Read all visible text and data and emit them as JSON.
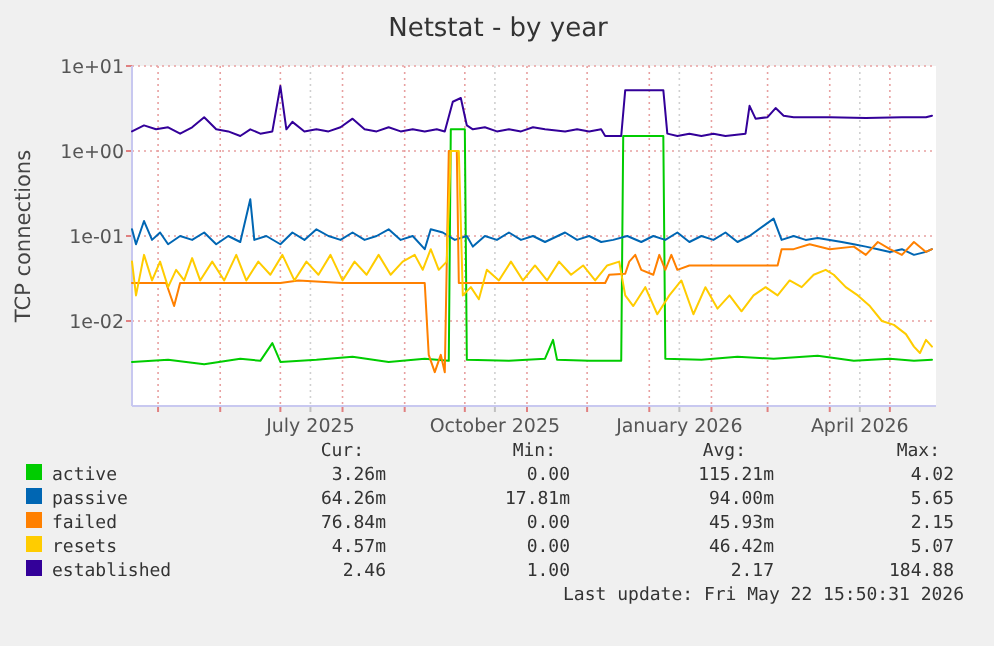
{
  "chart_data": {
    "type": "line",
    "title": "Netstat - by year",
    "ylabel": "TCP connections",
    "log": true,
    "grid": true,
    "legend": "bottom",
    "line_style": "solid",
    "marker": "none",
    "xlim": [
      "2025-04-18",
      "2026-05-24"
    ],
    "xticks": [
      {
        "value": "2025-05-01",
        "label": null
      },
      {
        "value": "2025-06-01",
        "label": null
      },
      {
        "value": "2025-07-01",
        "label": null
      },
      {
        "value": "2025-07-16",
        "label": "July 2025"
      },
      {
        "value": "2025-08-01",
        "label": null
      },
      {
        "value": "2025-09-01",
        "label": null
      },
      {
        "value": "2025-10-01",
        "label": null
      },
      {
        "value": "2025-10-16",
        "label": "October 2025"
      },
      {
        "value": "2025-11-01",
        "label": null
      },
      {
        "value": "2025-12-01",
        "label": null
      },
      {
        "value": "2026-01-01",
        "label": null
      },
      {
        "value": "2026-01-16",
        "label": "January 2026"
      },
      {
        "value": "2026-02-01",
        "label": null
      },
      {
        "value": "2026-03-01",
        "label": null
      },
      {
        "value": "2026-04-01",
        "label": null
      },
      {
        "value": "2026-04-16",
        "label": "April 2026"
      },
      {
        "value": "2026-05-01",
        "label": null
      }
    ],
    "ylim": [
      0.001,
      10
    ],
    "yticks": [
      {
        "value": 0.01,
        "label": "1e-02"
      },
      {
        "value": 0.1,
        "label": "1e-01"
      },
      {
        "value": 1,
        "label": "1e+00"
      },
      {
        "value": 10,
        "label": "1e+01"
      }
    ],
    "series": [
      {
        "name": "active",
        "color": "#00cc00",
        "x": [
          "2025-04-18",
          "2025-05-06",
          "2025-05-24",
          "2025-06-11",
          "2025-06-21",
          "2025-06-27",
          "2025-07-01",
          "2025-07-19",
          "2025-08-06",
          "2025-08-24",
          "2025-09-11",
          "2025-09-23",
          "2025-09-24",
          "2025-10-01",
          "2025-10-02",
          "2025-10-23",
          "2025-11-10",
          "2025-11-14",
          "2025-11-16",
          "2025-12-02",
          "2025-12-18",
          "2025-12-19",
          "2026-01-08",
          "2026-01-09",
          "2026-01-27",
          "2026-02-14",
          "2026-03-04",
          "2026-03-26",
          "2026-04-13",
          "2026-05-01",
          "2026-05-13",
          "2026-05-22"
        ],
        "values": [
          0.0033,
          0.0035,
          0.0031,
          0.0036,
          0.0034,
          0.0055,
          0.0033,
          0.0035,
          0.0038,
          0.0033,
          0.0036,
          0.0034,
          1.8,
          1.8,
          0.0035,
          0.0034,
          0.0036,
          0.006,
          0.0035,
          0.0034,
          0.0034,
          1.5,
          1.5,
          0.0036,
          0.0035,
          0.0038,
          0.0036,
          0.0039,
          0.0034,
          0.0036,
          0.0034,
          0.0035
        ]
      },
      {
        "name": "passive",
        "color": "#0066b3",
        "x": [
          "2025-04-18",
          "2025-04-20",
          "2025-04-24",
          "2025-04-28",
          "2025-05-02",
          "2025-05-06",
          "2025-05-12",
          "2025-05-18",
          "2025-05-24",
          "2025-05-30",
          "2025-06-05",
          "2025-06-11",
          "2025-06-16",
          "2025-06-18",
          "2025-06-24",
          "2025-07-01",
          "2025-07-07",
          "2025-07-13",
          "2025-07-19",
          "2025-07-25",
          "2025-07-31",
          "2025-08-06",
          "2025-08-12",
          "2025-08-18",
          "2025-08-24",
          "2025-08-30",
          "2025-09-05",
          "2025-09-11",
          "2025-09-14",
          "2025-09-20",
          "2025-09-26",
          "2025-10-02",
          "2025-10-05",
          "2025-10-11",
          "2025-10-17",
          "2025-10-23",
          "2025-10-29",
          "2025-11-04",
          "2025-11-10",
          "2025-11-20",
          "2025-11-26",
          "2025-12-02",
          "2025-12-08",
          "2025-12-14",
          "2025-12-21",
          "2025-12-28",
          "2026-01-03",
          "2026-01-09",
          "2026-01-15",
          "2026-01-21",
          "2026-01-27",
          "2026-02-02",
          "2026-02-08",
          "2026-02-14",
          "2026-02-20",
          "2026-03-04",
          "2026-03-08",
          "2026-03-14",
          "2026-03-20",
          "2026-03-26",
          "2026-04-01",
          "2026-04-07",
          "2026-04-13",
          "2026-04-19",
          "2026-04-25",
          "2026-05-01",
          "2026-05-07",
          "2026-05-13",
          "2026-05-19",
          "2026-05-22"
        ],
        "values": [
          0.12,
          0.08,
          0.15,
          0.09,
          0.11,
          0.08,
          0.1,
          0.09,
          0.11,
          0.08,
          0.1,
          0.085,
          0.27,
          0.09,
          0.1,
          0.08,
          0.11,
          0.09,
          0.12,
          0.1,
          0.09,
          0.11,
          0.09,
          0.1,
          0.12,
          0.09,
          0.1,
          0.07,
          0.12,
          0.11,
          0.09,
          0.1,
          0.075,
          0.1,
          0.09,
          0.11,
          0.09,
          0.1,
          0.085,
          0.11,
          0.09,
          0.1,
          0.085,
          0.09,
          0.1,
          0.085,
          0.1,
          0.09,
          0.11,
          0.085,
          0.1,
          0.09,
          0.11,
          0.085,
          0.1,
          0.16,
          0.09,
          0.1,
          0.09,
          0.095,
          0.09,
          0.085,
          0.08,
          0.075,
          0.07,
          0.065,
          0.07,
          0.06,
          0.065,
          0.07
        ]
      },
      {
        "name": "failed",
        "color": "#ff8000",
        "x": [
          "2025-04-18",
          "2025-05-05",
          "2025-05-09",
          "2025-05-12",
          "2025-07-01",
          "2025-07-10",
          "2025-08-01",
          "2025-09-11",
          "2025-09-13",
          "2025-09-16",
          "2025-09-19",
          "2025-09-21",
          "2025-09-23",
          "2025-09-27",
          "2025-09-28",
          "2025-12-10",
          "2025-12-12",
          "2025-12-20",
          "2025-12-22",
          "2025-12-25",
          "2025-12-28",
          "2026-01-03",
          "2026-01-06",
          "2026-01-09",
          "2026-01-12",
          "2026-01-15",
          "2026-01-21",
          "2026-02-08",
          "2026-03-06",
          "2026-03-08",
          "2026-03-14",
          "2026-03-22",
          "2026-04-01",
          "2026-04-13",
          "2026-04-19",
          "2026-04-25",
          "2026-05-01",
          "2026-05-07",
          "2026-05-13",
          "2026-05-19",
          "2026-05-22"
        ],
        "values": [
          0.028,
          0.028,
          0.015,
          0.028,
          0.028,
          0.03,
          0.028,
          0.028,
          0.004,
          0.0025,
          0.004,
          0.0025,
          1.0,
          1.0,
          0.028,
          0.028,
          0.035,
          0.036,
          0.05,
          0.06,
          0.04,
          0.035,
          0.06,
          0.04,
          0.06,
          0.04,
          0.045,
          0.045,
          0.045,
          0.07,
          0.07,
          0.08,
          0.07,
          0.075,
          0.06,
          0.085,
          0.07,
          0.06,
          0.085,
          0.065,
          0.07
        ]
      },
      {
        "name": "resets",
        "color": "#ffcc00",
        "x": [
          "2025-04-18",
          "2025-04-20",
          "2025-04-24",
          "2025-04-28",
          "2025-05-02",
          "2025-05-06",
          "2025-05-10",
          "2025-05-14",
          "2025-05-18",
          "2025-05-22",
          "2025-05-28",
          "2025-06-03",
          "2025-06-09",
          "2025-06-14",
          "2025-06-20",
          "2025-06-26",
          "2025-07-02",
          "2025-07-08",
          "2025-07-14",
          "2025-07-20",
          "2025-07-26",
          "2025-08-01",
          "2025-08-07",
          "2025-08-13",
          "2025-08-19",
          "2025-08-25",
          "2025-08-31",
          "2025-09-06",
          "2025-09-10",
          "2025-09-14",
          "2025-09-18",
          "2025-09-22",
          "2025-09-24",
          "2025-09-28",
          "2025-09-30",
          "2025-10-04",
          "2025-10-08",
          "2025-10-12",
          "2025-10-18",
          "2025-10-24",
          "2025-10-30",
          "2025-11-05",
          "2025-11-11",
          "2025-11-17",
          "2025-11-23",
          "2025-11-29",
          "2025-12-05",
          "2025-12-11",
          "2025-12-17",
          "2025-12-20",
          "2025-12-24",
          "2025-12-30",
          "2026-01-05",
          "2026-01-11",
          "2026-01-17",
          "2026-01-23",
          "2026-01-29",
          "2026-02-04",
          "2026-02-10",
          "2026-02-16",
          "2026-02-22",
          "2026-02-28",
          "2026-03-06",
          "2026-03-12",
          "2026-03-18",
          "2026-03-24",
          "2026-03-30",
          "2026-04-03",
          "2026-04-09",
          "2026-04-15",
          "2026-04-21",
          "2026-04-27",
          "2026-05-03",
          "2026-05-09",
          "2026-05-13",
          "2026-05-16",
          "2026-05-19",
          "2026-05-22"
        ],
        "values": [
          0.05,
          0.02,
          0.06,
          0.03,
          0.05,
          0.025,
          0.04,
          0.03,
          0.055,
          0.03,
          0.05,
          0.03,
          0.06,
          0.03,
          0.05,
          0.035,
          0.06,
          0.03,
          0.05,
          0.035,
          0.06,
          0.03,
          0.05,
          0.035,
          0.06,
          0.035,
          0.05,
          0.06,
          0.04,
          0.07,
          0.04,
          0.05,
          1.0,
          1.0,
          0.02,
          0.025,
          0.018,
          0.04,
          0.03,
          0.05,
          0.03,
          0.045,
          0.03,
          0.05,
          0.035,
          0.045,
          0.03,
          0.045,
          0.05,
          0.02,
          0.015,
          0.025,
          0.012,
          0.02,
          0.03,
          0.012,
          0.025,
          0.014,
          0.02,
          0.013,
          0.02,
          0.025,
          0.02,
          0.03,
          0.025,
          0.035,
          0.04,
          0.035,
          0.025,
          0.02,
          0.015,
          0.01,
          0.009,
          0.007,
          0.005,
          0.0042,
          0.006,
          0.005
        ]
      },
      {
        "name": "established",
        "color": "#330099",
        "x": [
          "2025-04-18",
          "2025-04-24",
          "2025-04-30",
          "2025-05-06",
          "2025-05-12",
          "2025-05-18",
          "2025-05-24",
          "2025-05-30",
          "2025-06-05",
          "2025-06-11",
          "2025-06-16",
          "2025-06-21",
          "2025-06-27",
          "2025-07-01",
          "2025-07-04",
          "2025-07-07",
          "2025-07-13",
          "2025-07-19",
          "2025-07-25",
          "2025-07-31",
          "2025-08-06",
          "2025-08-12",
          "2025-08-18",
          "2025-08-24",
          "2025-08-30",
          "2025-09-05",
          "2025-09-11",
          "2025-09-17",
          "2025-09-21",
          "2025-09-25",
          "2025-09-29",
          "2025-10-02",
          "2025-10-05",
          "2025-10-11",
          "2025-10-17",
          "2025-10-23",
          "2025-10-29",
          "2025-11-04",
          "2025-11-10",
          "2025-11-20",
          "2025-11-26",
          "2025-12-02",
          "2025-12-08",
          "2025-12-10",
          "2025-12-18",
          "2025-12-20",
          "2025-12-28",
          "2026-01-08",
          "2026-01-10",
          "2026-01-15",
          "2026-01-21",
          "2026-01-27",
          "2026-02-02",
          "2026-02-08",
          "2026-02-18",
          "2026-02-20",
          "2026-02-23",
          "2026-03-01",
          "2026-03-05",
          "2026-03-09",
          "2026-03-14",
          "2026-04-01",
          "2026-04-19",
          "2026-05-07",
          "2026-05-19",
          "2026-05-22"
        ],
        "values": [
          1.7,
          2.0,
          1.8,
          1.9,
          1.6,
          1.9,
          2.5,
          1.8,
          1.7,
          1.5,
          1.8,
          1.6,
          1.7,
          5.8,
          1.8,
          2.2,
          1.7,
          1.8,
          1.7,
          1.9,
          2.4,
          1.8,
          1.7,
          1.9,
          1.7,
          1.8,
          1.7,
          1.8,
          1.7,
          3.8,
          4.2,
          2.0,
          1.8,
          1.9,
          1.7,
          1.8,
          1.7,
          1.9,
          1.8,
          1.7,
          1.8,
          1.7,
          1.8,
          1.5,
          1.5,
          5.2,
          5.2,
          5.2,
          1.6,
          1.5,
          1.6,
          1.5,
          1.6,
          1.5,
          1.6,
          3.4,
          2.4,
          2.5,
          3.2,
          2.6,
          2.5,
          2.5,
          2.45,
          2.5,
          2.5,
          2.6
        ]
      }
    ],
    "annotations": [
      "Cur:",
      "Min:",
      "Avg:",
      "Max:",
      "3.26m",
      "0.00",
      "115.21m",
      "4.02",
      "64.26m",
      "17.81m",
      "94.00m",
      "5.65",
      "76.84m",
      "0.00",
      "45.93m",
      "2.15",
      "4.57m",
      "0.00",
      "46.42m",
      "5.07",
      "2.46",
      "1.00",
      "2.17",
      "184.88",
      "Last update: Fri May 22 15:50:31 2026"
    ]
  }
}
